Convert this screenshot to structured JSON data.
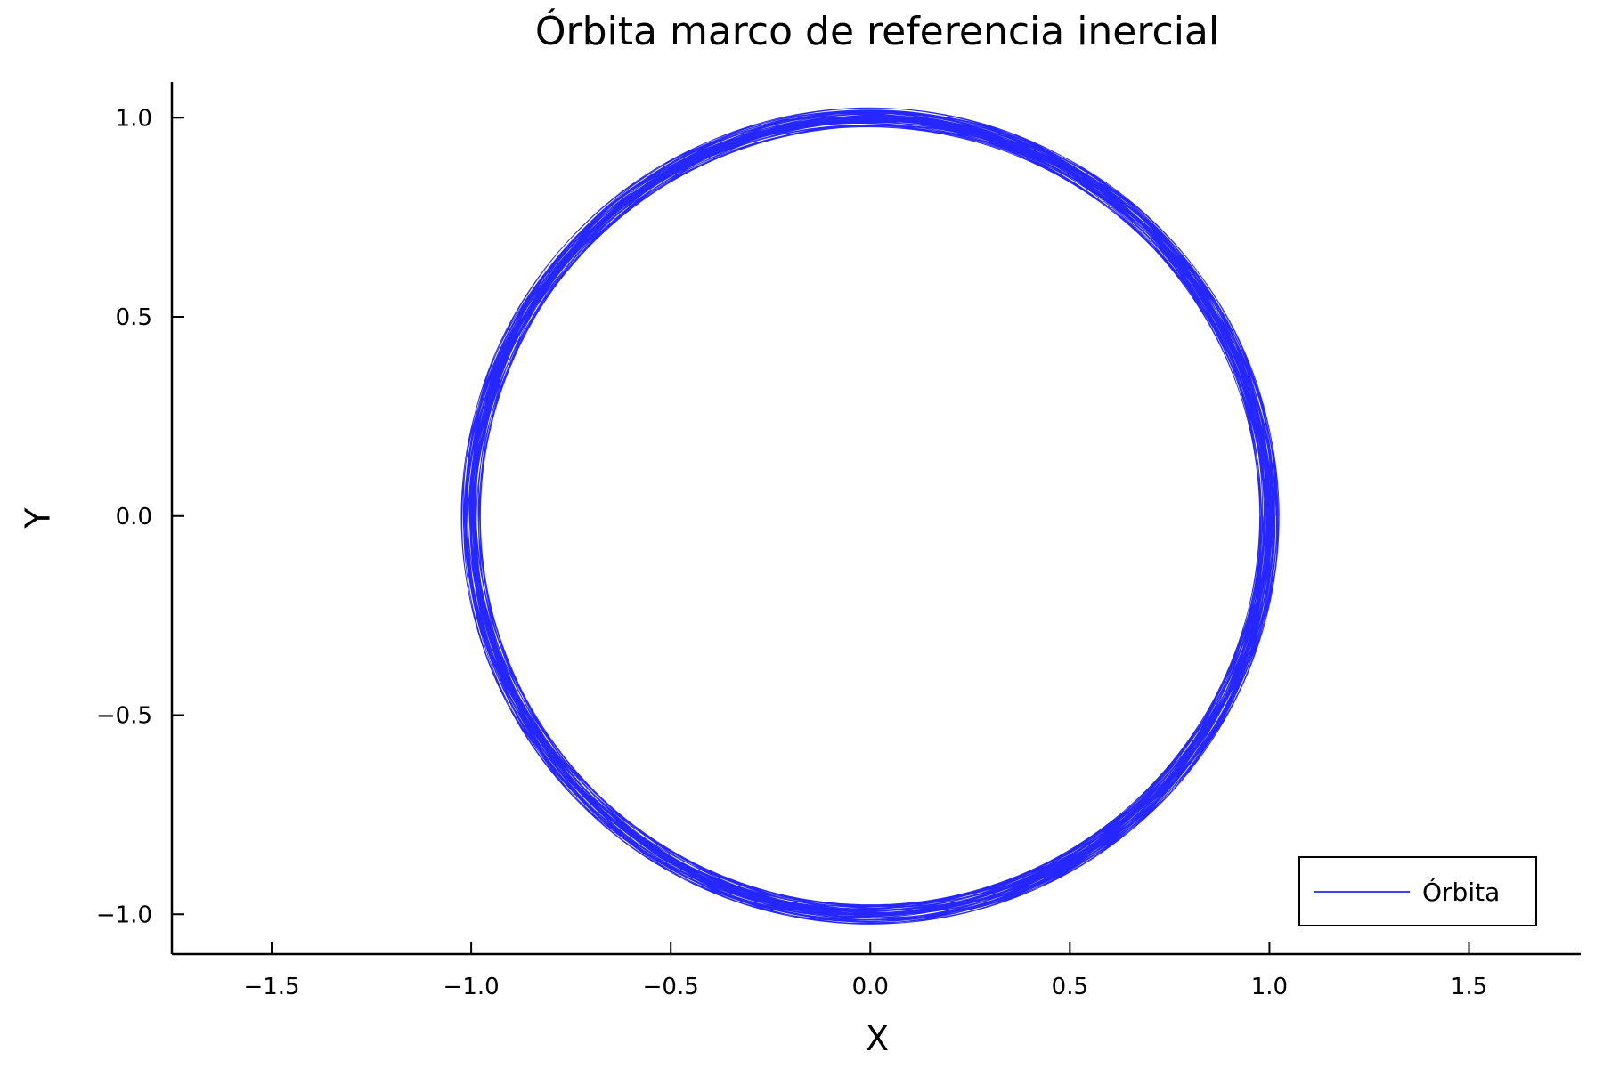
{
  "chart_data": {
    "type": "line",
    "title": "Órbita marco de referencia inercial",
    "xlabel": "X",
    "ylabel": "Y",
    "xlim": [
      -1.75,
      1.78
    ],
    "ylim": [
      -1.1,
      1.09
    ],
    "xticks": [
      -1.5,
      -1.0,
      -0.5,
      0.0,
      0.5,
      1.0,
      1.5
    ],
    "xtick_labels": [
      "−1.5",
      "−1.0",
      "−0.5",
      "0.0",
      "0.5",
      "1.0",
      "1.5"
    ],
    "yticks": [
      -1.0,
      -0.5,
      0.0,
      0.5,
      1.0
    ],
    "ytick_labels": [
      "−1.0",
      "−0.5",
      "0.0",
      "0.5",
      "1.0"
    ],
    "grid": false,
    "legend_position": "bottom-right",
    "series": [
      {
        "name": "Órbita",
        "color": "#0000ff",
        "shape": "near-circular orbit, many overlapping revolutions",
        "center": [
          0.0,
          0.0
        ],
        "radius_min": 0.975,
        "radius_max": 1.025,
        "revolutions": 60
      }
    ]
  }
}
